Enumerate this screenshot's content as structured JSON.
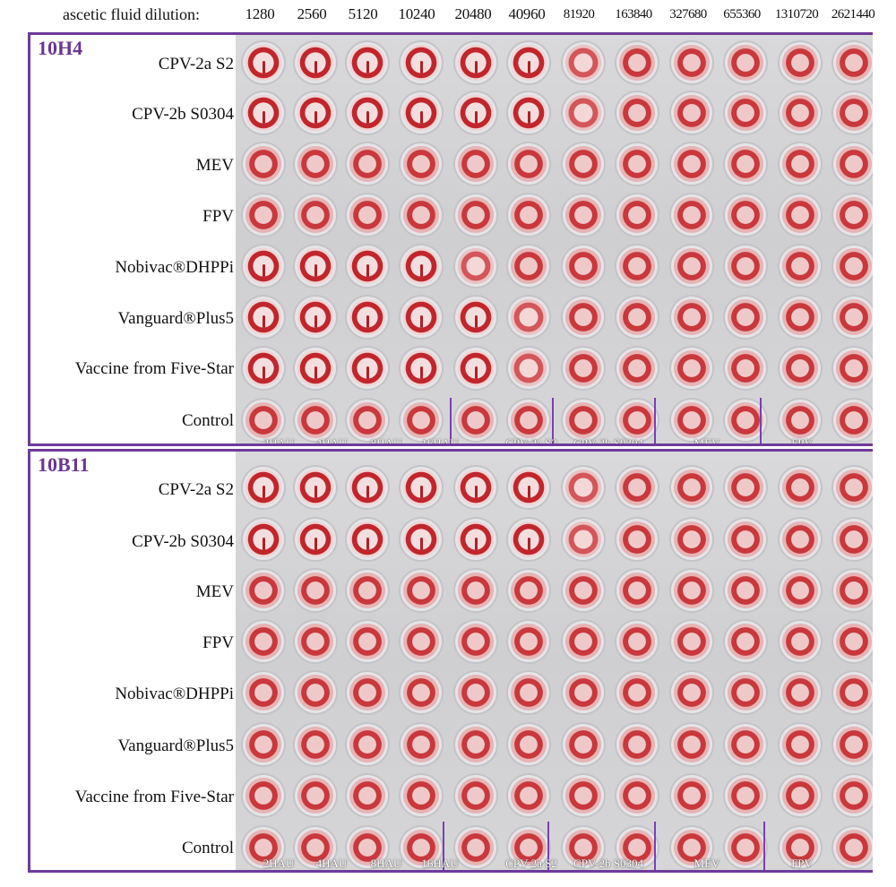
{
  "header": {
    "label": "ascetic fluid dilution:",
    "dilutions": [
      "1280",
      "2560",
      "5120",
      "10240",
      "20480",
      "40960",
      "81920",
      "163840",
      "327680",
      "655360",
      "1310720",
      "2621440"
    ]
  },
  "panels": [
    {
      "id": "panel1",
      "title": "10H4",
      "rows": [
        "CPV-2a S2",
        "CPV-2b S0304",
        "MEV",
        "FPV",
        "Nobivac®DHPPi",
        "Vanguard®Plus5",
        "Vaccine from Five-Star",
        "Control"
      ],
      "button_counts": [
        6,
        6,
        0,
        0,
        4,
        5,
        5,
        0
      ],
      "control_labels": [
        "2HAU",
        "4HAU",
        "8HAU",
        "16HAU",
        "CPV-2a S2",
        "CPV-2b S0304",
        "MEV",
        "FPV"
      ]
    },
    {
      "id": "panel2",
      "title": "10B11",
      "rows": [
        "CPV-2a S2",
        "CPV-2b S0304",
        "MEV",
        "FPV",
        "Nobivac®DHPPi",
        "Vanguard®Plus5",
        "Vaccine from Five-Star",
        "Control"
      ],
      "button_counts": [
        6,
        6,
        0,
        0,
        0,
        0,
        0,
        0
      ],
      "control_labels": [
        "2HAU",
        "4HAU",
        "8HAU",
        "16HAU",
        "CPV-2a S2",
        "CPV-2b S0304",
        "MEV",
        "FPV"
      ]
    }
  ],
  "colors": {
    "frame": "#6f3a9a",
    "title": "#6a3593",
    "well_red": "#c8383c"
  }
}
